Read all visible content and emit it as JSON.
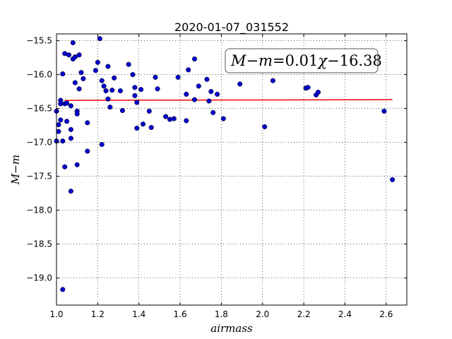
{
  "chart_data": {
    "type": "scatter",
    "title": "2020-01-07_031552",
    "xlabel": "airmass",
    "ylabel": "M−m",
    "xlim": [
      1.0,
      2.7
    ],
    "ylim": [
      -19.4,
      -15.4
    ],
    "x_ticks": [
      1.0,
      1.2,
      1.4,
      1.6,
      1.8,
      2.0,
      2.2,
      2.4,
      2.6
    ],
    "x_tick_labels": [
      "1.0",
      "1.2",
      "1.4",
      "1.6",
      "1.8",
      "2.0",
      "2.2",
      "2.4",
      "2.6"
    ],
    "y_ticks": [
      -15.5,
      -16.0,
      -16.5,
      -17.0,
      -17.5,
      -18.0,
      -18.5,
      -19.0
    ],
    "y_tick_labels": [
      "−15.5",
      "−16.0",
      "−16.5",
      "−17.0",
      "−17.5",
      "−18.0",
      "−18.5",
      "−19.0"
    ],
    "grid": true,
    "annotation": {
      "position": "top-right",
      "lhs": "M−m",
      "eq": "=0.01",
      "chi": "χ",
      "rhs": "−16.38"
    },
    "fit_line": {
      "color": "#ff0000",
      "x": [
        1.04,
        2.63
      ],
      "y": [
        -16.38,
        -16.37
      ]
    },
    "point_color": "#0000cc",
    "points": {
      "x": [
        1.0,
        1.0,
        1.01,
        1.01,
        1.02,
        1.02,
        1.02,
        1.03,
        1.03,
        1.03,
        1.04,
        1.04,
        1.04,
        1.05,
        1.05,
        1.06,
        1.07,
        1.07,
        1.07,
        1.07,
        1.08,
        1.08,
        1.09,
        1.09,
        1.1,
        1.1,
        1.1,
        1.11,
        1.11,
        1.12,
        1.13,
        1.15,
        1.15,
        1.19,
        1.2,
        1.21,
        1.22,
        1.22,
        1.23,
        1.24,
        1.25,
        1.25,
        1.26,
        1.27,
        1.28,
        1.31,
        1.32,
        1.35,
        1.37,
        1.38,
        1.38,
        1.39,
        1.39,
        1.41,
        1.42,
        1.45,
        1.46,
        1.48,
        1.49,
        1.53,
        1.55,
        1.57,
        1.59,
        1.63,
        1.63,
        1.64,
        1.67,
        1.67,
        1.69,
        1.73,
        1.74,
        1.75,
        1.76,
        1.78,
        1.81,
        1.89,
        2.01,
        2.05,
        2.21,
        2.22,
        2.26,
        2.27,
        2.59,
        2.63
      ],
      "y": [
        -16.54,
        -16.98,
        -16.74,
        -16.84,
        -16.38,
        -16.43,
        -16.67,
        -15.99,
        -16.98,
        -19.17,
        -15.69,
        -16.43,
        -17.36,
        -16.42,
        -16.69,
        -15.71,
        -16.46,
        -16.81,
        -16.94,
        -17.72,
        -15.77,
        -15.53,
        -15.74,
        -16.12,
        -16.54,
        -16.58,
        -17.33,
        -16.21,
        -15.71,
        -15.97,
        -16.06,
        -16.71,
        -17.13,
        -15.94,
        -15.82,
        -15.47,
        -16.09,
        -17.03,
        -16.17,
        -16.24,
        -15.88,
        -16.36,
        -16.48,
        -16.23,
        -16.05,
        -16.24,
        -16.53,
        -15.85,
        -16.0,
        -16.31,
        -16.19,
        -16.41,
        -16.79,
        -16.22,
        -16.73,
        -16.54,
        -16.78,
        -16.04,
        -16.21,
        -16.62,
        -16.66,
        -16.65,
        -16.04,
        -16.29,
        -16.68,
        -15.93,
        -15.77,
        -16.37,
        -16.17,
        -16.07,
        -16.39,
        -16.25,
        -16.56,
        -16.29,
        -16.65,
        -16.14,
        -16.77,
        -16.09,
        -16.2,
        -16.19,
        -16.3,
        -16.26,
        -16.54,
        -17.55
      ]
    }
  }
}
